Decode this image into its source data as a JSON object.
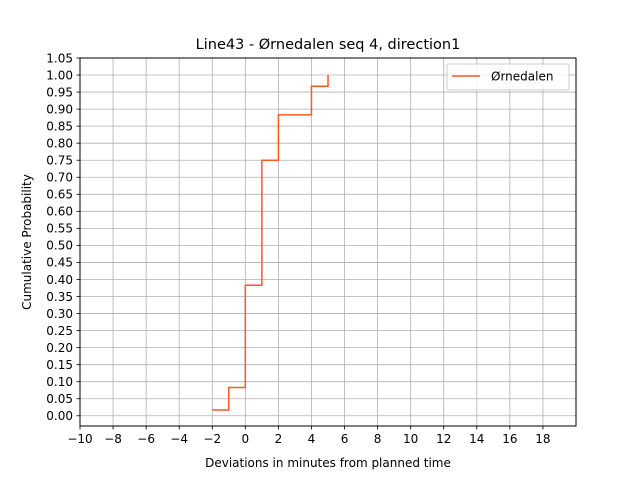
{
  "chart_data": {
    "type": "line",
    "title": "Line43 - Ørnedalen seq 4, direction1",
    "xlabel": "Deviations in minutes from planned time",
    "ylabel": "Cumulative Probability",
    "xlim": [
      -10,
      20
    ],
    "ylim": [
      -0.03,
      1.05
    ],
    "xticks": [
      -10,
      -8,
      -6,
      -4,
      -2,
      0,
      2,
      4,
      6,
      8,
      10,
      12,
      14,
      16,
      18
    ],
    "xtick_labels": [
      "−10",
      "−8",
      "−6",
      "−4",
      "−2",
      "0",
      "2",
      "4",
      "6",
      "8",
      "10",
      "12",
      "14",
      "16",
      "18"
    ],
    "yticks": [
      0.0,
      0.05,
      0.1,
      0.15,
      0.2,
      0.25,
      0.3,
      0.35,
      0.4,
      0.45,
      0.5,
      0.55,
      0.6,
      0.65,
      0.7,
      0.75,
      0.8,
      0.85,
      0.9,
      0.95,
      1.0,
      1.05
    ],
    "ytick_labels": [
      "0.00",
      "0.05",
      "0.10",
      "0.15",
      "0.20",
      "0.25",
      "0.30",
      "0.35",
      "0.40",
      "0.45",
      "0.50",
      "0.55",
      "0.60",
      "0.65",
      "0.70",
      "0.75",
      "0.80",
      "0.85",
      "0.90",
      "0.95",
      "1.00",
      "1.05"
    ],
    "grid": true,
    "legend_position": "top-right",
    "series": [
      {
        "name": "Ørnedalen",
        "color": "#ff5722",
        "step": "post",
        "x": [
          -2,
          -1,
          0,
          1,
          2,
          4,
          5
        ],
        "y": [
          0.017,
          0.083,
          0.383,
          0.75,
          0.883,
          0.967,
          0.985
        ]
      }
    ],
    "series_end": {
      "x": 5,
      "y": 1.0
    }
  }
}
